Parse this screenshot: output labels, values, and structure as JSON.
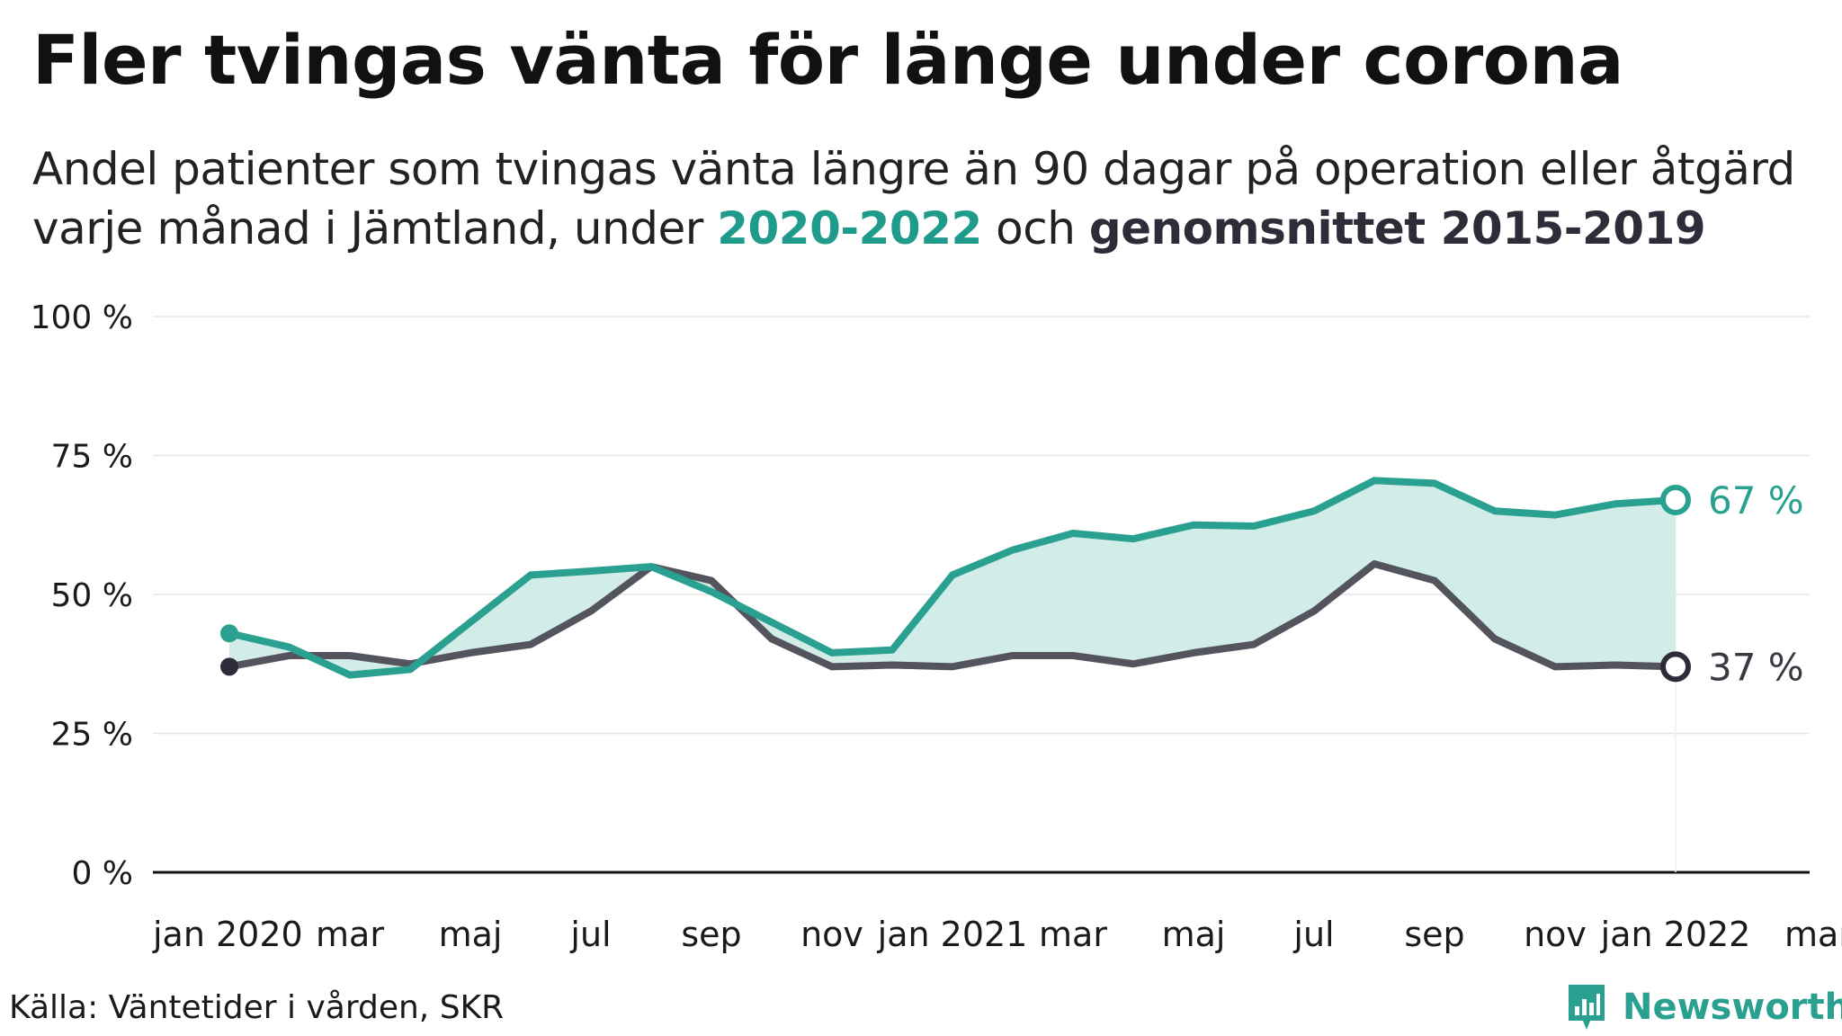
{
  "title": "Fler tvingas vänta för länge under corona",
  "subtitle": {
    "line1": "Andel patienter som tvingas vänta längre än 90 dagar på operation eller åtgärd",
    "line2_pre": "varje månad i Jämtland, under ",
    "line2_hl1": "2020-2022",
    "line2_mid": " och ",
    "line2_hl2": "genomsnittet 2015-2019"
  },
  "source": "Källa: Väntetider i vården, SKR",
  "logo": {
    "text": "Newsworthy",
    "icon": "bar-chart-icon"
  },
  "colors": {
    "current": "#2aa090",
    "average": "#54545e",
    "fill": "#d2ece7",
    "avg_marker": "#2d2d3a"
  },
  "chart_data": {
    "type": "line",
    "title": "",
    "xlabel": "",
    "ylabel": "",
    "ylim": [
      0,
      100
    ],
    "yticks": [
      "0 %",
      "25 %",
      "50 %",
      "75 %",
      "100 %"
    ],
    "xticks": [
      "jan 2020",
      "mar",
      "maj",
      "jul",
      "sep",
      "nov",
      "jan 2021",
      "mar",
      "maj",
      "jul",
      "sep",
      "nov",
      "jan 2022",
      "mar"
    ],
    "x": [
      "2020-01",
      "2020-02",
      "2020-03",
      "2020-04",
      "2020-05",
      "2020-06",
      "2020-07",
      "2020-08",
      "2020-09",
      "2020-10",
      "2020-11",
      "2020-12",
      "2021-01",
      "2021-02",
      "2021-03",
      "2021-04",
      "2021-05",
      "2021-06",
      "2021-07",
      "2021-08",
      "2021-09",
      "2021-10",
      "2021-11",
      "2021-12",
      "2022-01"
    ],
    "series": [
      {
        "name": "2020-2022",
        "values": [
          43,
          40.5,
          35.5,
          36.5,
          45,
          53.5,
          54.2,
          55,
          50.5,
          45,
          39.5,
          40,
          53.5,
          58,
          61,
          60,
          62.5,
          62.3,
          65,
          70.5,
          70,
          65,
          64.3,
          66.3,
          67
        ],
        "end_label": "67 %"
      },
      {
        "name": "genomsnittet 2015-2019",
        "values": [
          37,
          39,
          39,
          37.5,
          39.5,
          41,
          47,
          55,
          52.5,
          42,
          37,
          37.3,
          37,
          39,
          39,
          37.5,
          39.5,
          41,
          47,
          55.5,
          52.5,
          42,
          37,
          37.3,
          37
        ],
        "end_label": "37 %"
      }
    ],
    "grid": true
  }
}
